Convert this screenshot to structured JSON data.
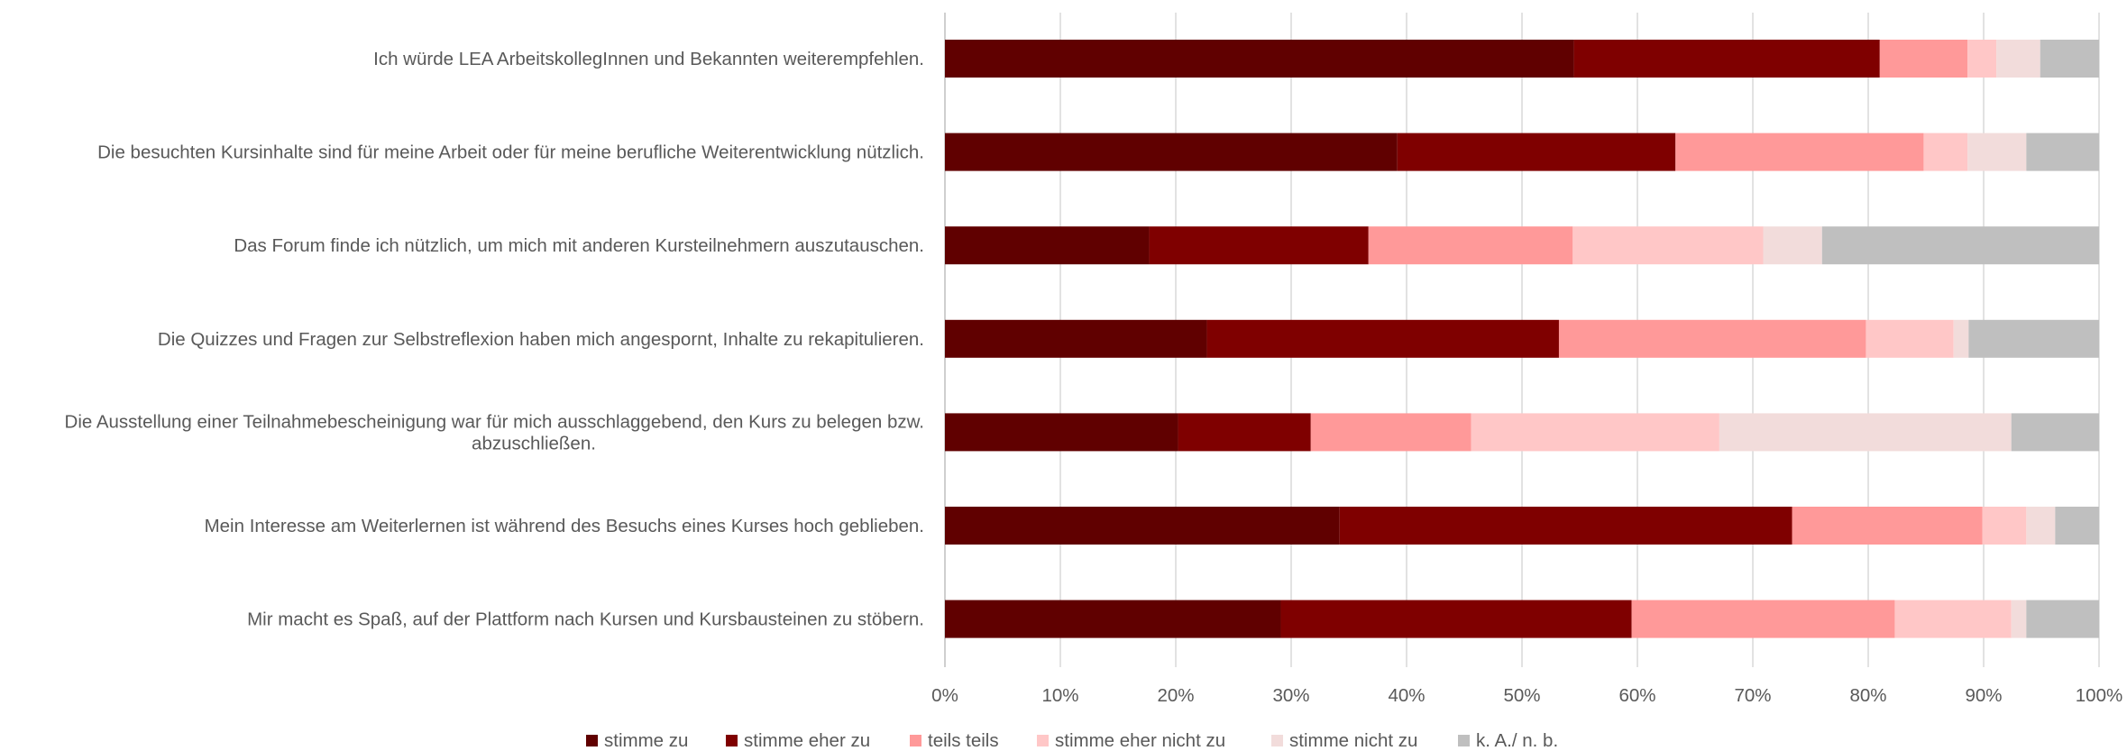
{
  "chart_data": {
    "type": "bar",
    "orientation": "horizontal",
    "stacked": true,
    "title": "",
    "xlabel": "",
    "ylabel": "",
    "xlim": [
      0,
      100
    ],
    "x_ticks": [
      "0%",
      "10%",
      "20%",
      "30%",
      "40%",
      "50%",
      "60%",
      "70%",
      "80%",
      "90%",
      "100%"
    ],
    "grid": "vertical",
    "legend_position": "bottom",
    "categories": [
      "Ich würde LEA ArbeitskollegInnen und Bekannten weiterempfehlen.",
      "Die besuchten Kursinhalte sind für meine Arbeit oder für meine berufliche Weiterentwicklung nützlich.",
      "Das Forum finde ich nützlich, um mich mit anderen Kursteilnehmern auszutauschen.",
      "Die Quizzes und Fragen zur Selbstreflexion haben mich angespornt, Inhalte zu rekapitulieren.",
      "Die Ausstellung einer Teilnahmebescheinigung war für mich ausschlaggebend, den Kurs zu belegen bzw. abzuschließen.",
      "Mein Interesse am Weiterlernen ist während des Besuchs eines Kurses hoch geblieben.",
      "Mir macht es Spaß, auf der Plattform nach Kursen und Kursbausteinen zu stöbern."
    ],
    "category_label_lines": [
      [
        "Ich würde LEA ArbeitskollegInnen und Bekannten weiterempfehlen."
      ],
      [
        "Die besuchten Kursinhalte sind für meine Arbeit oder für meine berufliche Weiterentwicklung nützlich."
      ],
      [
        "Das Forum finde ich nützlich, um mich mit anderen Kursteilnehmern auszutauschen."
      ],
      [
        "Die Quizzes und Fragen zur Selbstreflexion haben mich angespornt, Inhalte zu rekapitulieren."
      ],
      [
        "Die Ausstellung einer Teilnahmebescheinigung war für mich ausschlaggebend, den Kurs zu belegen bzw.",
        "abzuschließen."
      ],
      [
        "Mein Interesse am Weiterlernen ist während des Besuchs eines Kurses hoch geblieben."
      ],
      [
        "Mir macht es Spaß, auf der Plattform nach Kursen und Kursbausteinen zu stöbern."
      ]
    ],
    "series": [
      {
        "name": "stimme zu",
        "color": "#600000",
        "values": [
          54.5,
          39.2,
          17.7,
          22.7,
          20.2,
          34.2,
          29.1
        ]
      },
      {
        "name": "stimme eher zu",
        "color": "#7f0000",
        "values": [
          26.5,
          24.1,
          19.0,
          30.5,
          11.5,
          39.2,
          30.4
        ]
      },
      {
        "name": "teils teils",
        "color": "#ff9999",
        "values": [
          7.6,
          21.5,
          17.7,
          26.6,
          13.9,
          16.5,
          22.8
        ]
      },
      {
        "name": "stimme eher nicht zu",
        "color": "#ffc7c7",
        "values": [
          2.5,
          3.8,
          16.5,
          7.6,
          21.5,
          3.8,
          10.1
        ]
      },
      {
        "name": "stimme nicht zu",
        "color": "#f2dcdb",
        "values": [
          3.8,
          5.1,
          5.1,
          1.3,
          25.3,
          2.5,
          1.3
        ]
      },
      {
        "name": "k. A./ n. b.",
        "color": "#bfbfbf",
        "values": [
          5.1,
          6.3,
          24.0,
          11.3,
          7.6,
          3.8,
          6.3
        ]
      }
    ]
  }
}
